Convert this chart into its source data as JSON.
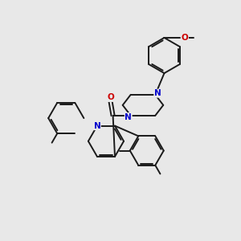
{
  "bg_color": "#e8e8e8",
  "bond_color": "#1a1a1a",
  "N_color": "#0000cc",
  "O_color": "#cc0000",
  "lw": 1.4,
  "fs": 7.5,
  "figsize": [
    3.0,
    3.0
  ],
  "dpi": 100,
  "xlim": [
    0,
    10
  ],
  "ylim": [
    0,
    10
  ]
}
